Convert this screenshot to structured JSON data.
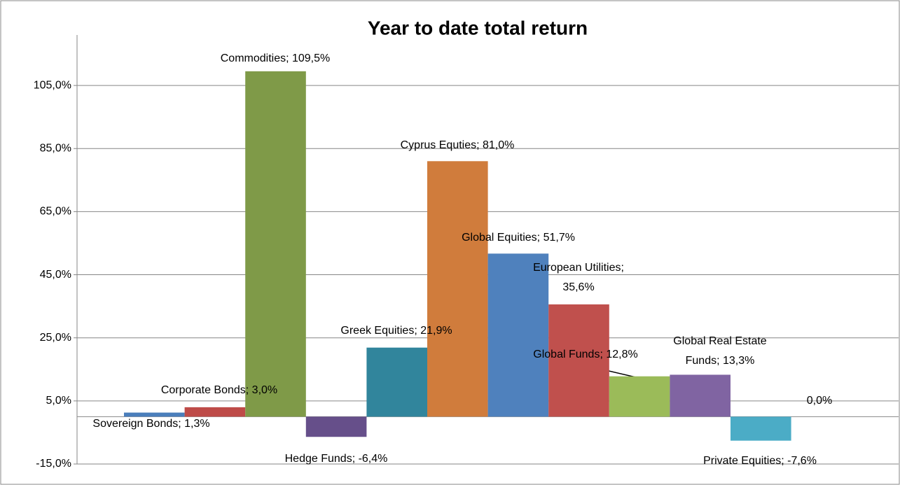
{
  "chart_data": {
    "type": "bar",
    "title": "Year to date total return",
    "values": [
      1.3,
      3.0,
      109.5,
      -6.4,
      21.9,
      81.0,
      51.7,
      35.6,
      12.8,
      13.3,
      -7.6,
      0.0
    ],
    "value_labels": [
      "Sovereign Bonds; 1,3%",
      "Corporate Bonds; 3,0%",
      "Commodities; 109,5%",
      "Hedge Funds; -6,4%",
      "Greek Equities; 21,9%",
      "Cyprus Equties; 81,0%",
      "Global Equities; 51,7%",
      "European Utilities; 35,6%",
      "Global Funds; 12,8%",
      "Global Real Estate Funds; 13,3%",
      "Private Equities; -7,6%",
      "0,0%"
    ],
    "colors": [
      "#4a7ebb",
      "#be4b48",
      "#7f9a48",
      "#664f8a",
      "#31859c",
      "#d07c3c",
      "#4f81bd",
      "#c0504d",
      "#9bbb59",
      "#8064a2",
      "#4bacc6",
      "#4a7ebb"
    ],
    "ylim": [
      -15,
      121
    ],
    "yticks": [
      {
        "value": -15,
        "label": "-15,0%"
      },
      {
        "value": 5,
        "label": "5,0%"
      },
      {
        "value": 25,
        "label": "25,0%"
      },
      {
        "value": 45,
        "label": "45,0%"
      },
      {
        "value": 65,
        "label": "65,0%"
      },
      {
        "value": 85,
        "label": "85,0%"
      },
      {
        "value": 105,
        "label": "105,0%"
      }
    ],
    "grid": true
  }
}
